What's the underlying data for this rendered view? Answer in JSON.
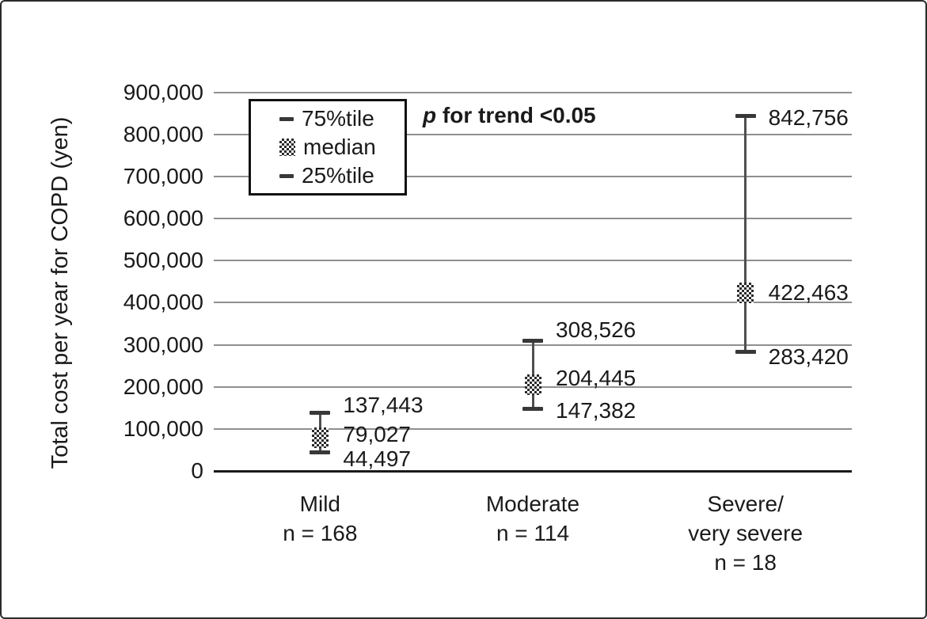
{
  "colors": {
    "background": "#ffffff",
    "frame_border": "#2b2b2b",
    "gridline": "#8f8f8f",
    "axis_line": "#1a1a1a",
    "whisker": "#4f4f4f",
    "cap": "#383838",
    "text": "#1a1a1a"
  },
  "annotation": {
    "italic_prefix": "p",
    "rest": " for trend <0.05",
    "full_text": "p for trend <0.05"
  },
  "legend": {
    "position": "top-left inside plot area, boxed",
    "items": [
      {
        "label": "75%tile",
        "marker": "dash-icon"
      },
      {
        "label": "median",
        "marker": "checker-square-icon"
      },
      {
        "label": "25%tile",
        "marker": "dash-icon"
      }
    ]
  },
  "chart_data": {
    "type": "scatter",
    "subtype": "median with 25th/75th percentile whisker bars (error-bar plot)",
    "title": "",
    "xlabel": "",
    "ylabel": "Total cost per year for COPD (yen)",
    "ylim": [
      0,
      900000
    ],
    "ytick_step": 100000,
    "yticks": [
      {
        "value": 0,
        "label": "0"
      },
      {
        "value": 100000,
        "label": "100,000"
      },
      {
        "value": 200000,
        "label": "200,000"
      },
      {
        "value": 300000,
        "label": "300,000"
      },
      {
        "value": 400000,
        "label": "400,000"
      },
      {
        "value": 500000,
        "label": "500,000"
      },
      {
        "value": 600000,
        "label": "600,000"
      },
      {
        "value": 700000,
        "label": "700,000"
      },
      {
        "value": 800000,
        "label": "800,000"
      },
      {
        "value": 900000,
        "label": "900,000"
      }
    ],
    "grid": "horizontal gray gridlines at each 100,000; bold black baseline at 0",
    "legend_entries": [
      "75%tile",
      "median",
      "25%tile"
    ],
    "annotation": "p for trend <0.05",
    "categories": [
      "Mild",
      "Moderate",
      "Severe/very severe"
    ],
    "groups": [
      {
        "name": "Mild",
        "n": 168,
        "label_lines": [
          "Mild",
          "n = 168"
        ],
        "p75": 137443,
        "median": 79027,
        "p25": 44497,
        "value_labels": {
          "p75": "137,443",
          "median": "79,027",
          "p25": "44,497"
        }
      },
      {
        "name": "Moderate",
        "n": 114,
        "label_lines": [
          "Moderate",
          "n = 114"
        ],
        "p75": 308526,
        "median": 204445,
        "p25": 147382,
        "value_labels": {
          "p75": "308,526",
          "median": "204,445",
          "p25": "147,382"
        }
      },
      {
        "name": "Severe/very severe",
        "n": 18,
        "label_lines": [
          "Severe/",
          "very severe",
          "n = 18"
        ],
        "p75": 842756,
        "median": 422463,
        "p25": 283420,
        "value_labels": {
          "p75": "842,756",
          "median": "422,463",
          "p25": "283,420"
        }
      }
    ]
  }
}
